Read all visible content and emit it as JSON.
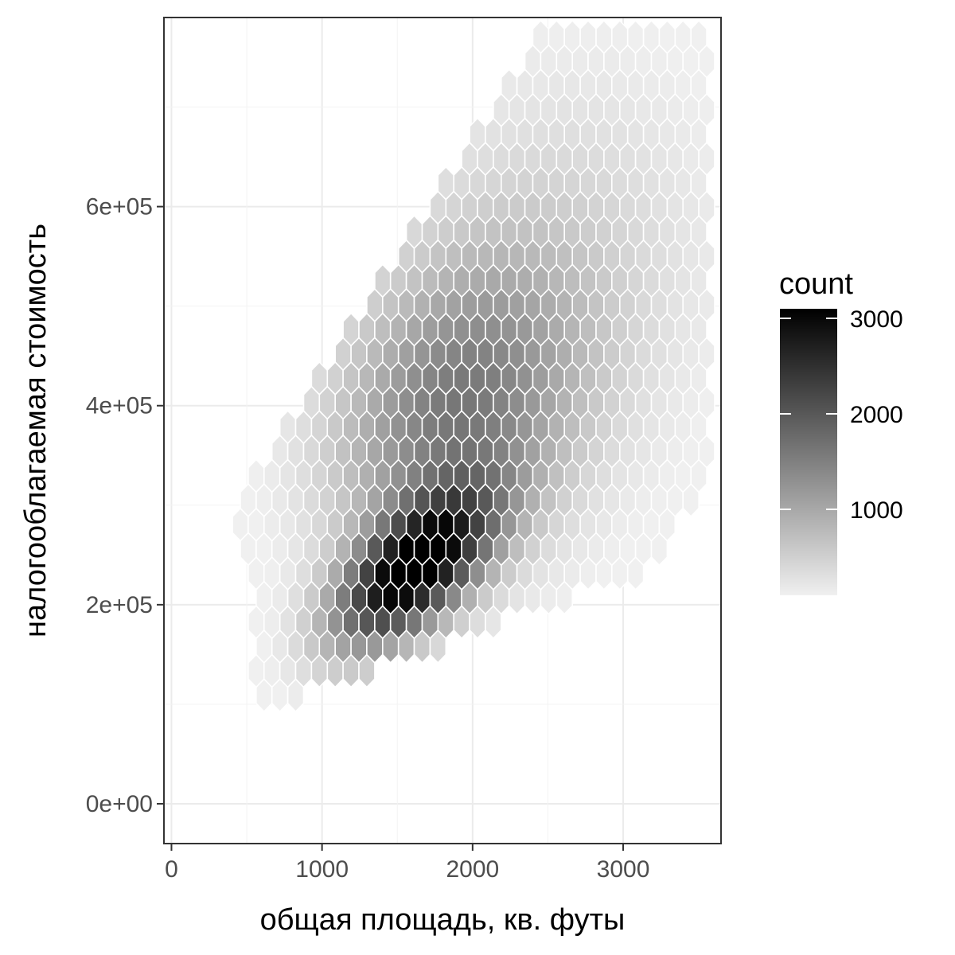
{
  "chart_data": {
    "type": "heatmap",
    "subtype": "hexbin",
    "title": "",
    "xlabel": "общая площадь, кв. футы",
    "ylabel": "налогооблагаемая стоимость",
    "xlim": [
      -50,
      3650
    ],
    "ylim": [
      -40000,
      790000
    ],
    "x_ticks": [
      0,
      1000,
      2000,
      3000
    ],
    "x_tick_labels": [
      "0",
      "1000",
      "2000",
      "3000"
    ],
    "y_ticks": [
      0,
      200000,
      400000,
      600000
    ],
    "y_tick_labels": [
      "0e+00",
      "2e+05",
      "4e+05",
      "6e+05"
    ],
    "grid": true,
    "theme": "bw",
    "legend": {
      "title": "count",
      "position": "right",
      "range": [
        100,
        3100
      ],
      "ticks": [
        1000,
        2000,
        3000
      ],
      "tick_labels": [
        "1000",
        "2000",
        "3000"
      ],
      "color_low": "#f0f0f0",
      "color_high": "#000000"
    },
    "density_model": {
      "peak_count": 3100,
      "peak_x": 1600,
      "peak_y": 235000,
      "hex_x_step": 105,
      "hex_y_step": 24500
    }
  }
}
